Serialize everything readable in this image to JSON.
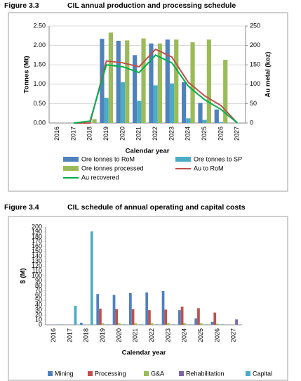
{
  "chart_data": [
    {
      "type": "bar",
      "figure": "Figure 3.3",
      "title": "CIL annual production and processing schedule",
      "x_label": "Calendar year",
      "y_label": "Tonnes (Mt)",
      "y2_label": "Au metal (koz)",
      "categories": [
        "2016",
        "2017",
        "2018",
        "2019",
        "2020",
        "2021",
        "2022",
        "2023",
        "2024",
        "2025",
        "2026",
        "2027"
      ],
      "ylim": [
        0,
        2.5
      ],
      "yticks": [
        {
          "value": 0,
          "label": "0.00"
        },
        {
          "value": 0.5,
          "label": "0.50"
        },
        {
          "value": 1,
          "label": "1.00"
        },
        {
          "value": 1.5,
          "label": "1.50"
        },
        {
          "value": 2,
          "label": "2.00"
        },
        {
          "value": 2.5,
          "label": "2.50"
        }
      ],
      "y2lim": [
        0,
        250
      ],
      "y2ticks": [
        0,
        50,
        100,
        150,
        200,
        250
      ],
      "grid": true,
      "legend": "bottom",
      "series": [
        {
          "name": "Ore tonnes to RoM",
          "color": "#4f81bd",
          "values": [
            0,
            0,
            0,
            2.17,
            2.12,
            1.75,
            2.05,
            2.15,
            1.05,
            0.52,
            0.35,
            0
          ]
        },
        {
          "name": "Ore tonnes to SP",
          "color": "#4bacc6",
          "values": [
            0,
            0,
            0,
            0.65,
            1.05,
            0.57,
            0.97,
            1.02,
            0.12,
            0.08,
            0.02,
            0
          ]
        },
        {
          "name": "Ore tonnes processed",
          "color": "#9bbb59",
          "values": [
            0,
            0,
            0.1,
            2.33,
            2.13,
            2.18,
            2.05,
            2.15,
            2.08,
            2.15,
            1.63,
            0
          ]
        },
        {
          "name": "Au to RoM",
          "color": "#c0504d",
          "type": "line",
          "axis": "y2",
          "values": [
            null,
            0,
            0,
            160,
            155,
            145,
            190,
            170,
            105,
            70,
            45,
            0
          ]
        },
        {
          "name": "Au recovered",
          "color": "#00b050",
          "type": "line",
          "axis": "y2",
          "values": [
            null,
            0,
            5,
            150,
            145,
            130,
            175,
            155,
            95,
            60,
            35,
            0
          ]
        }
      ]
    },
    {
      "type": "bar",
      "figure": "Figure 3.4",
      "title": "CIL schedule of annual operating and capital costs",
      "x_label": "Calendar year",
      "y_label": "$ (M)",
      "categories": [
        "2016",
        "2017",
        "2018",
        "2019",
        "2020",
        "2021",
        "2022",
        "2023",
        "2024",
        "2025",
        "2026",
        "2027"
      ],
      "ylim": [
        0,
        200
      ],
      "yticks": [
        0,
        10,
        20,
        30,
        40,
        50,
        60,
        70,
        80,
        90,
        100,
        110,
        120,
        130,
        140,
        150,
        160,
        170,
        180,
        190,
        200
      ],
      "grid": false,
      "legend": "bottom",
      "series": [
        {
          "name": "Mining",
          "color": "#4f81bd",
          "values": [
            0,
            0,
            4,
            63,
            61,
            65,
            66,
            69,
            30,
            13,
            6,
            0
          ]
        },
        {
          "name": "Processing",
          "color": "#c0504d",
          "values": [
            0,
            0,
            0,
            33,
            32,
            32,
            30,
            31,
            37,
            34,
            25,
            0
          ]
        },
        {
          "name": "G&A",
          "color": "#9bbb59",
          "values": [
            0,
            0,
            0,
            3,
            3,
            3,
            3,
            3,
            3,
            3,
            2,
            0
          ]
        },
        {
          "name": "Rehabilitation",
          "color": "#8064a2",
          "values": [
            0,
            0,
            0,
            0,
            0,
            0,
            0,
            0,
            0,
            0,
            0,
            11
          ]
        },
        {
          "name": "Capital",
          "color": "#4bacc6",
          "values": [
            1,
            39,
            191,
            1,
            1,
            1,
            1,
            1,
            1,
            1,
            1,
            0
          ]
        }
      ]
    }
  ]
}
